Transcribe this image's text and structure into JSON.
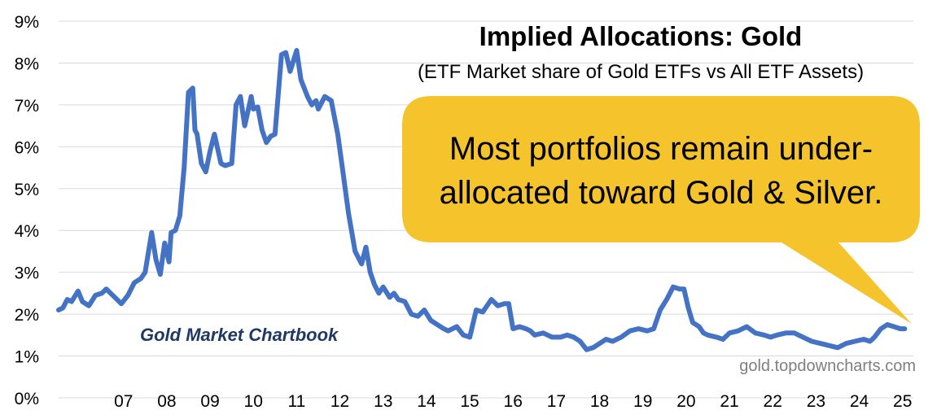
{
  "chart_data": {
    "type": "line",
    "title": "Implied Allocations: Gold",
    "subtitle": "(ETF Market share of Gold ETFs vs All ETF Assets)",
    "ylim": [
      0,
      9
    ],
    "yticks": [
      "0%",
      "1%",
      "2%",
      "3%",
      "4%",
      "5%",
      "6%",
      "7%",
      "8%",
      "9%"
    ],
    "xlim": [
      2006.0,
      2025.75
    ],
    "xticks": [
      {
        "label": "07",
        "value": 2007
      },
      {
        "label": "08",
        "value": 2008
      },
      {
        "label": "09",
        "value": 2009
      },
      {
        "label": "10",
        "value": 2010
      },
      {
        "label": "11",
        "value": 2011
      },
      {
        "label": "12",
        "value": 2012
      },
      {
        "label": "13",
        "value": 2013
      },
      {
        "label": "14",
        "value": 2014
      },
      {
        "label": "15",
        "value": 2015
      },
      {
        "label": "16",
        "value": 2016
      },
      {
        "label": "17",
        "value": 2017
      },
      {
        "label": "18",
        "value": 2018
      },
      {
        "label": "19",
        "value": 2019
      },
      {
        "label": "20",
        "value": 2020
      },
      {
        "label": "21",
        "value": 2021
      },
      {
        "label": "22",
        "value": 2022
      },
      {
        "label": "23",
        "value": 2023
      },
      {
        "label": "24",
        "value": 2024
      },
      {
        "label": "25",
        "value": 2025
      }
    ],
    "grid": true,
    "series_color": "#4472c4",
    "x": [
      2006.0,
      2006.1,
      2006.2,
      2006.3,
      2006.45,
      2006.55,
      2006.7,
      2006.85,
      2007.0,
      2007.1,
      2007.2,
      2007.35,
      2007.45,
      2007.6,
      2007.75,
      2007.9,
      2008.0,
      2008.15,
      2008.25,
      2008.35,
      2008.45,
      2008.55,
      2008.6,
      2008.7,
      2008.8,
      2008.9,
      2009.0,
      2009.1,
      2009.15,
      2009.2,
      2009.3,
      2009.4,
      2009.5,
      2009.6,
      2009.75,
      2009.85,
      2010.0,
      2010.1,
      2010.2,
      2010.3,
      2010.45,
      2010.5,
      2010.6,
      2010.7,
      2010.8,
      2010.9,
      2011.0,
      2011.15,
      2011.25,
      2011.35,
      2011.5,
      2011.6,
      2011.75,
      2011.85,
      2011.95,
      2012.0,
      2012.15,
      2012.3,
      2012.45,
      2012.55,
      2012.7,
      2012.85,
      2013.0,
      2013.1,
      2013.2,
      2013.3,
      2013.4,
      2013.5,
      2013.65,
      2013.75,
      2013.85,
      2014.0,
      2014.15,
      2014.3,
      2014.45,
      2014.6,
      2014.75,
      2014.9,
      2015.0,
      2015.2,
      2015.35,
      2015.5,
      2015.65,
      2015.8,
      2016.0,
      2016.15,
      2016.3,
      2016.4,
      2016.5,
      2016.65,
      2016.8,
      2016.9,
      2017.0,
      2017.2,
      2017.4,
      2017.6,
      2017.75,
      2017.9,
      2018.05,
      2018.2,
      2018.35,
      2018.5,
      2018.65,
      2018.8,
      2019.0,
      2019.2,
      2019.4,
      2019.6,
      2019.75,
      2019.9,
      2020.05,
      2020.2,
      2020.35,
      2020.45,
      2020.55,
      2020.65,
      2020.8,
      2020.9,
      2021.0,
      2021.2,
      2021.35,
      2021.5,
      2021.7,
      2021.9,
      2022.1,
      2022.3,
      2022.45,
      2022.6,
      2022.8,
      2023.0,
      2023.2,
      2023.4,
      2023.6,
      2023.8,
      2024.0,
      2024.2,
      2024.4,
      2024.6,
      2024.75,
      2024.85,
      2025.0,
      2025.15,
      2025.3,
      2025.45,
      2025.55
    ],
    "values": [
      2.1,
      2.15,
      2.35,
      2.3,
      2.55,
      2.3,
      2.2,
      2.45,
      2.5,
      2.6,
      2.5,
      2.35,
      2.25,
      2.45,
      2.75,
      2.85,
      3.0,
      3.95,
      3.3,
      2.95,
      3.7,
      3.25,
      3.95,
      4.0,
      4.35,
      5.5,
      7.3,
      7.4,
      6.4,
      6.3,
      5.6,
      5.4,
      5.9,
      6.3,
      5.6,
      5.55,
      5.6,
      7.0,
      7.2,
      6.5,
      7.2,
      6.9,
      6.95,
      6.4,
      6.1,
      6.25,
      6.3,
      8.2,
      8.25,
      7.8,
      8.3,
      7.6,
      7.2,
      7.0,
      7.1,
      6.9,
      7.2,
      7.1,
      6.3,
      5.55,
      4.4,
      3.5,
      3.2,
      3.6,
      3.0,
      2.7,
      2.5,
      2.65,
      2.4,
      2.5,
      2.35,
      2.3,
      2.0,
      1.95,
      2.1,
      1.85,
      1.75,
      1.65,
      1.6,
      1.7,
      1.5,
      1.45,
      2.1,
      2.05,
      2.35,
      2.2,
      2.25,
      2.25,
      1.65,
      1.7,
      1.65,
      1.6,
      1.5,
      1.55,
      1.45,
      1.45,
      1.5,
      1.45,
      1.35,
      1.15,
      1.2,
      1.3,
      1.4,
      1.35,
      1.45,
      1.6,
      1.65,
      1.6,
      1.65,
      2.1,
      2.35,
      2.65,
      2.6,
      2.6,
      2.15,
      1.8,
      1.7,
      1.55,
      1.5,
      1.45,
      1.4,
      1.55,
      1.6,
      1.7,
      1.55,
      1.5,
      1.45,
      1.5,
      1.55,
      1.55,
      1.45,
      1.35,
      1.3,
      1.25,
      1.2,
      1.3,
      1.35,
      1.4,
      1.35,
      1.45,
      1.65,
      1.75,
      1.7,
      1.65,
      1.65
    ]
  },
  "annotation": {
    "callout_line1": "Most portfolios remain under-",
    "callout_line2": "allocated toward Gold & Silver.",
    "callout_color": "#f5c32c"
  },
  "branding": {
    "chartbook": "Gold Market Chartbook",
    "source": "gold.topdowncharts.com"
  }
}
